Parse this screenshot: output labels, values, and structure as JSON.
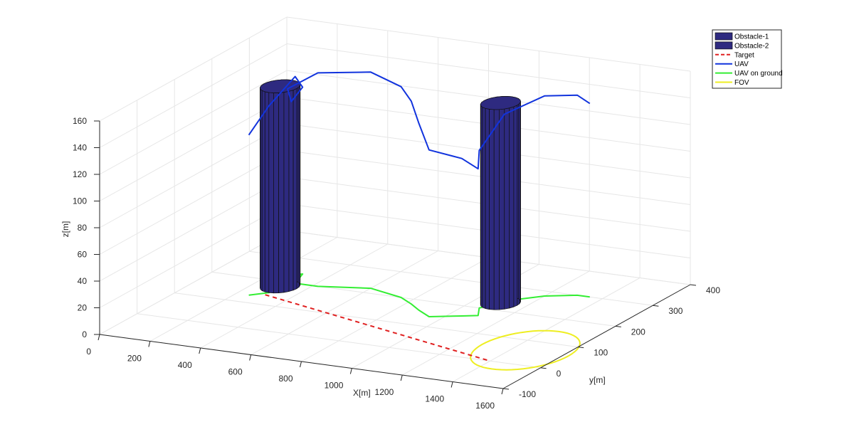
{
  "chart_data": {
    "type": "line3d",
    "xlabel": "X[m]",
    "ylabel": "y[m]",
    "zlabel": "z[m]",
    "xlim": [
      0,
      1600
    ],
    "ylim": [
      -100,
      400
    ],
    "zlim": [
      0,
      160
    ],
    "x_ticks": [
      "0",
      "200",
      "400",
      "600",
      "800",
      "1000",
      "1200",
      "1400",
      "1600"
    ],
    "y_ticks": [
      "-100",
      "0",
      "100",
      "200",
      "300",
      "400"
    ],
    "z_ticks": [
      "0",
      "20",
      "40",
      "60",
      "80",
      "100",
      "120",
      "140",
      "160"
    ],
    "grid": true,
    "legend_position": "top-right",
    "colors": {
      "obstacle": "#2E2A80",
      "target": "#E02020",
      "uav": "#1133DD",
      "uav_ground": "#33EE33",
      "fov": "#EEEE22",
      "grid": "#E6E6E6",
      "axis": "#262626"
    },
    "series": [
      {
        "name": "Obstacle-1",
        "kind": "cylinder",
        "center": [
          300,
          180
        ],
        "radius": 30,
        "height": 150
      },
      {
        "name": "Obstacle-2",
        "kind": "cylinder",
        "center": [
          1100,
          230
        ],
        "radius": 30,
        "height": 150
      },
      {
        "name": "Target",
        "kind": "dashed-line",
        "points": [
          [
            300,
            140,
            0
          ],
          [
            1400,
            0,
            0
          ]
        ]
      },
      {
        "name": "UAV",
        "kind": "line",
        "points": [
          [
            250,
            130,
            120
          ],
          [
            300,
            150,
            140
          ],
          [
            330,
            200,
            155
          ],
          [
            300,
            240,
            140
          ],
          [
            270,
            230,
            130
          ],
          [
            300,
            200,
            145
          ],
          [
            420,
            200,
            160
          ],
          [
            600,
            220,
            162
          ],
          [
            750,
            200,
            158
          ],
          [
            820,
            180,
            152
          ],
          [
            880,
            160,
            140
          ],
          [
            950,
            140,
            125
          ],
          [
            1050,
            160,
            118
          ],
          [
            1100,
            170,
            110
          ],
          [
            1060,
            200,
            118
          ],
          [
            1100,
            240,
            140
          ],
          [
            1200,
            280,
            150
          ],
          [
            1300,
            300,
            150
          ],
          [
            1350,
            300,
            145
          ]
        ]
      },
      {
        "name": "UAV on ground",
        "kind": "line",
        "points": [
          [
            250,
            130,
            0
          ],
          [
            300,
            150,
            0
          ],
          [
            330,
            200,
            0
          ],
          [
            300,
            240,
            0
          ],
          [
            270,
            230,
            0
          ],
          [
            300,
            200,
            0
          ],
          [
            420,
            200,
            0
          ],
          [
            600,
            220,
            0
          ],
          [
            750,
            200,
            0
          ],
          [
            820,
            180,
            0
          ],
          [
            880,
            160,
            0
          ],
          [
            950,
            140,
            0
          ],
          [
            1050,
            160,
            0
          ],
          [
            1100,
            170,
            0
          ],
          [
            1060,
            200,
            0
          ],
          [
            1100,
            240,
            0
          ],
          [
            1200,
            280,
            0
          ],
          [
            1300,
            300,
            0
          ],
          [
            1350,
            300,
            0
          ]
        ]
      },
      {
        "name": "FOV",
        "kind": "circle",
        "center": [
          1450,
          60
        ],
        "radius": 90
      }
    ],
    "legend": [
      "Obstacle-1",
      "Obstacle-2",
      "Target",
      "UAV",
      "UAV on ground",
      "FOV"
    ]
  }
}
